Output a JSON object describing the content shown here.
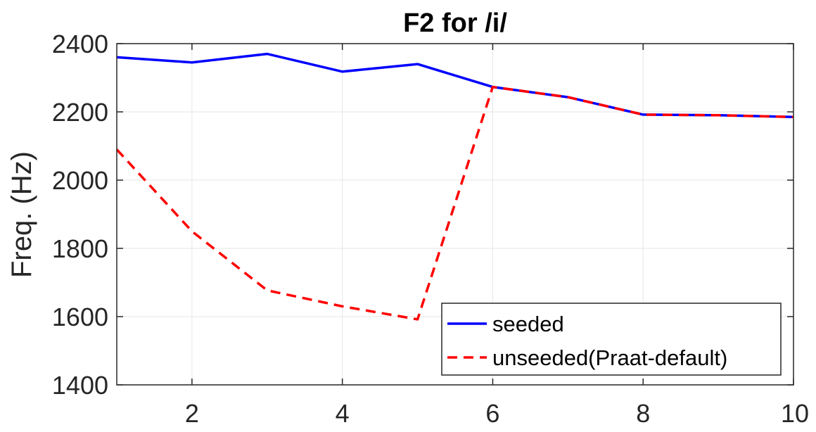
{
  "chart_data": {
    "type": "line",
    "title": "F2 for /i/",
    "xlabel": "",
    "ylabel": "Freq. (Hz)",
    "xlim": [
      1,
      10
    ],
    "ylim": [
      1400,
      2400
    ],
    "xticks": [
      2,
      4,
      6,
      8,
      10
    ],
    "yticks": [
      1400,
      1600,
      1800,
      2000,
      2200,
      2400
    ],
    "grid": true,
    "legend_position": "bottom-right",
    "x": [
      1,
      2,
      3,
      4,
      5,
      6,
      7,
      8,
      9,
      10
    ],
    "series": [
      {
        "name": "seeded",
        "color": "#0000ff",
        "style": "solid",
        "values": [
          2360,
          2345,
          2370,
          2318,
          2340,
          2273,
          2243,
          2192,
          2190,
          2185
        ]
      },
      {
        "name": "unseeded(Praat-default)",
        "color": "#ff0000",
        "style": "dashed",
        "values": [
          2090,
          1850,
          1677,
          1630,
          1592,
          2273,
          2243,
          2192,
          2190,
          2185
        ]
      }
    ]
  }
}
